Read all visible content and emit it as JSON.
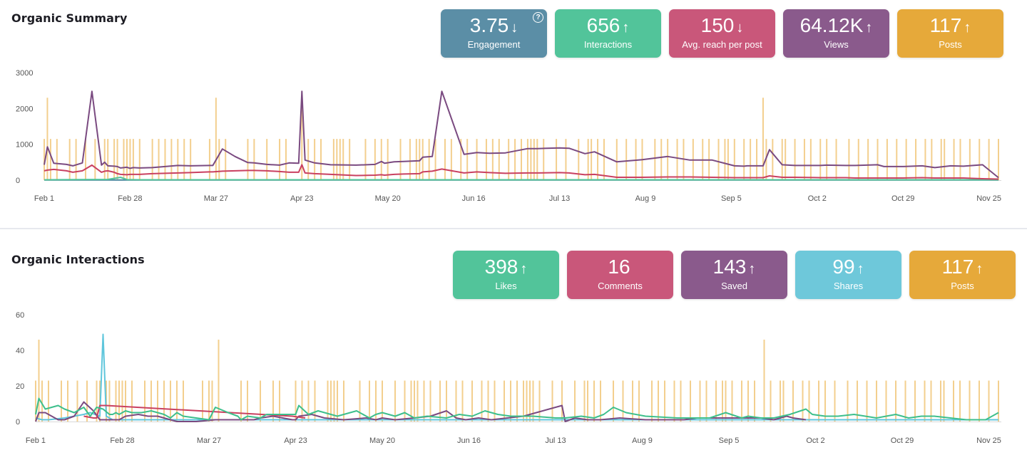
{
  "summary": {
    "title": "Organic Summary",
    "cards": [
      {
        "value": "3.75",
        "trend": "down",
        "label": "Engagement",
        "color": "#5b8ea6",
        "help": true
      },
      {
        "value": "656",
        "trend": "up",
        "label": "Interactions",
        "color": "#52c49a"
      },
      {
        "value": "150",
        "trend": "down",
        "label": "Avg. reach per post",
        "color": "#c9577a"
      },
      {
        "value": "64.12K",
        "trend": "up",
        "label": "Views",
        "color": "#8a5a8c"
      },
      {
        "value": "117",
        "trend": "up",
        "label": "Posts",
        "color": "#e6a93a"
      }
    ]
  },
  "interactions": {
    "title": "Organic Interactions",
    "cards": [
      {
        "value": "398",
        "trend": "up",
        "label": "Likes",
        "color": "#52c49a"
      },
      {
        "value": "16",
        "trend": "none",
        "label": "Comments",
        "color": "#c9577a"
      },
      {
        "value": "143",
        "trend": "up",
        "label": "Saved",
        "color": "#8a5a8c"
      },
      {
        "value": "99",
        "trend": "up",
        "label": "Shares",
        "color": "#6ec8da"
      },
      {
        "value": "117",
        "trend": "up",
        "label": "Posts",
        "color": "#e6a93a"
      }
    ]
  },
  "help_icon": "question-circle-icon",
  "arrow_icons": {
    "up": "↑",
    "down": "↓",
    "none": ""
  },
  "chart_data": [
    {
      "type": "line",
      "title": "Organic Summary",
      "xlabel": "",
      "ylabel": "",
      "ylim": [
        0,
        3000
      ],
      "yticks": [
        0,
        1000,
        2000,
        3000
      ],
      "xtick_labels": [
        "Feb 1",
        "Feb 28",
        "Mar 27",
        "Apr 23",
        "May 20",
        "Jun 16",
        "Jul 13",
        "Aug 9",
        "Sep 5",
        "Oct 2",
        "Oct 29",
        "Nov 25"
      ],
      "x_range_days": [
        0,
        300
      ],
      "grid": false,
      "legend": "none",
      "posts_bars": {
        "color": "#f3cf8e",
        "days": [
          0,
          2,
          4,
          8,
          10,
          13,
          16,
          19,
          20,
          22,
          23,
          25,
          26,
          27,
          28,
          30,
          34,
          36,
          38,
          40,
          42,
          44,
          46,
          52,
          54,
          55,
          57,
          64,
          66,
          70,
          74,
          76,
          81,
          83,
          85,
          87,
          91,
          92,
          93,
          94,
          96,
          101,
          104,
          106,
          108,
          112,
          115,
          117,
          118,
          119,
          121,
          123,
          126,
          128,
          131,
          133,
          136,
          139,
          141,
          143,
          146,
          148,
          150,
          152,
          153,
          154,
          155,
          157,
          161,
          164,
          168,
          171,
          172,
          174,
          176,
          180,
          183,
          186,
          188,
          192,
          194,
          196,
          199,
          201,
          204,
          207,
          209,
          212,
          214,
          215,
          217,
          220,
          222,
          224,
          227,
          229,
          232,
          233,
          236,
          239,
          241,
          244,
          246,
          249,
          253,
          256,
          259,
          262,
          265,
          268,
          271,
          274,
          277,
          279,
          282,
          283,
          286,
          288,
          291,
          294,
          297,
          300
        ],
        "tall_days": [
          1,
          54,
          81,
          226
        ],
        "value_normal": 1150,
        "value_tall": 2300
      },
      "series": [
        {
          "name": "Views",
          "color": "#7a4a80",
          "x": [
            0,
            1,
            3,
            7,
            9,
            12,
            15,
            18,
            19,
            20,
            22,
            23,
            24,
            26,
            27,
            28,
            30,
            34,
            38,
            42,
            46,
            52,
            53,
            56,
            60,
            64,
            66,
            70,
            74,
            77,
            80,
            81,
            82,
            85,
            90,
            98,
            104,
            106,
            107,
            110,
            113,
            118,
            119,
            122,
            125,
            132,
            136,
            140,
            145,
            152,
            155,
            162,
            165,
            170,
            173,
            180,
            188,
            196,
            203,
            210,
            217,
            220,
            221,
            226,
            228,
            232,
            236,
            244,
            246,
            252,
            255,
            262,
            264,
            270,
            276,
            280,
            285,
            289,
            295,
            300
          ],
          "y": [
            430,
            930,
            470,
            440,
            400,
            480,
            2480,
            420,
            500,
            400,
            390,
            380,
            340,
            360,
            330,
            350,
            340,
            350,
            380,
            410,
            400,
            410,
            410,
            870,
            660,
            490,
            480,
            440,
            420,
            480,
            470,
            2480,
            560,
            480,
            430,
            420,
            440,
            520,
            470,
            510,
            520,
            540,
            640,
            660,
            2480,
            720,
            770,
            750,
            760,
            880,
            880,
            900,
            890,
            740,
            790,
            510,
            570,
            660,
            560,
            560,
            400,
            390,
            400,
            400,
            850,
            430,
            410,
            410,
            420,
            410,
            410,
            430,
            380,
            380,
            400,
            350,
            400,
            390,
            430,
            70
          ]
        },
        {
          "name": "Avg. reach per post",
          "color": "#c94060",
          "x": [
            0,
            1,
            3,
            7,
            9,
            12,
            15,
            18,
            19,
            20,
            22,
            23,
            24,
            26,
            27,
            28,
            30,
            34,
            38,
            42,
            46,
            52,
            53,
            56,
            60,
            64,
            66,
            70,
            74,
            77,
            80,
            81,
            82,
            85,
            90,
            98,
            104,
            106,
            107,
            110,
            113,
            118,
            119,
            122,
            125,
            132,
            136,
            140,
            145,
            152,
            155,
            162,
            165,
            170,
            173,
            180,
            188,
            196,
            203,
            210,
            217,
            220,
            221,
            226,
            228,
            232,
            236,
            244,
            246,
            252,
            255,
            262,
            264,
            270,
            276,
            280,
            285,
            289,
            295,
            300
          ],
          "y": [
            260,
            280,
            300,
            260,
            220,
            260,
            420,
            220,
            250,
            260,
            220,
            180,
            160,
            150,
            160,
            160,
            160,
            180,
            190,
            200,
            210,
            230,
            230,
            250,
            260,
            270,
            270,
            260,
            240,
            220,
            220,
            430,
            200,
            180,
            160,
            130,
            140,
            150,
            140,
            160,
            170,
            180,
            230,
            250,
            310,
            200,
            230,
            210,
            190,
            200,
            200,
            210,
            200,
            150,
            160,
            80,
            80,
            90,
            90,
            80,
            70,
            70,
            70,
            70,
            120,
            80,
            80,
            70,
            70,
            70,
            60,
            60,
            60,
            60,
            70,
            60,
            60,
            60,
            40,
            30
          ]
        },
        {
          "name": "Interactions",
          "color": "#52c49a",
          "x": [
            0,
            20,
            22,
            24,
            26,
            30,
            60,
            120,
            180,
            240,
            300
          ],
          "y": [
            10,
            20,
            50,
            80,
            15,
            10,
            10,
            10,
            10,
            10,
            10
          ]
        },
        {
          "name": "Engagement",
          "color": "#4a8aa3",
          "x": [
            0,
            300
          ],
          "y": [
            5,
            5
          ]
        }
      ]
    },
    {
      "type": "line",
      "title": "Organic Interactions",
      "xlabel": "",
      "ylabel": "",
      "ylim": [
        0,
        60
      ],
      "yticks": [
        0,
        20,
        40,
        60
      ],
      "xtick_labels": [
        "Feb 1",
        "Feb 28",
        "Mar 27",
        "Apr 23",
        "May 20",
        "Jun 16",
        "Jul 13",
        "Aug 9",
        "Sep 5",
        "Oct 2",
        "Oct 29",
        "Nov 25"
      ],
      "x_range_days": [
        0,
        300
      ],
      "grid": false,
      "legend": "none",
      "posts_bars": {
        "color": "#f3cf8e",
        "days": [
          0,
          2,
          4,
          8,
          10,
          13,
          16,
          19,
          20,
          22,
          23,
          25,
          26,
          27,
          28,
          30,
          34,
          36,
          38,
          40,
          42,
          44,
          46,
          52,
          54,
          55,
          57,
          64,
          66,
          70,
          74,
          76,
          81,
          83,
          85,
          87,
          91,
          92,
          93,
          94,
          96,
          101,
          104,
          106,
          108,
          112,
          115,
          117,
          118,
          119,
          121,
          123,
          126,
          128,
          131,
          133,
          136,
          139,
          141,
          143,
          146,
          148,
          150,
          152,
          153,
          154,
          155,
          157,
          161,
          164,
          168,
          171,
          172,
          174,
          176,
          180,
          183,
          186,
          188,
          192,
          194,
          196,
          199,
          201,
          204,
          207,
          209,
          212,
          214,
          215,
          217,
          220,
          222,
          224,
          227,
          229,
          232,
          233,
          236,
          239,
          241,
          244,
          246,
          249,
          253,
          256,
          259,
          262,
          265,
          268,
          271,
          274,
          277,
          279,
          282,
          283,
          286,
          288,
          291,
          294,
          297,
          300
        ],
        "tall_days": [
          1,
          57,
          227
        ],
        "value_normal": 23,
        "value_tall": 46
      },
      "series": [
        {
          "name": "Likes",
          "color": "#3dbf8c",
          "x": [
            0,
            1,
            3,
            7,
            9,
            12,
            15,
            17,
            19,
            21,
            23,
            24,
            25,
            26,
            28,
            30,
            33,
            36,
            38,
            40,
            42,
            44,
            46,
            50,
            54,
            56,
            60,
            63,
            64,
            66,
            70,
            72,
            74,
            78,
            81,
            82,
            85,
            88,
            94,
            100,
            104,
            106,
            108,
            112,
            115,
            118,
            122,
            128,
            132,
            136,
            140,
            144,
            148,
            155,
            162,
            165,
            170,
            174,
            177,
            180,
            184,
            190,
            200,
            210,
            215,
            220,
            222,
            226,
            230,
            235,
            240,
            242,
            246,
            250,
            255,
            262,
            268,
            272,
            276,
            280,
            285,
            290,
            296,
            300
          ],
          "y": [
            4,
            13,
            7,
            9,
            7,
            5,
            8,
            3,
            8,
            7,
            4,
            4,
            5,
            4,
            6,
            5,
            5,
            6,
            5,
            4,
            2,
            5,
            3,
            2,
            1,
            8,
            5,
            3,
            1,
            3,
            2,
            4,
            4,
            4,
            4,
            9,
            4,
            6,
            3,
            6,
            2,
            4,
            5,
            3,
            5,
            2,
            3,
            2,
            4,
            3,
            6,
            4,
            3,
            3,
            2,
            2,
            3,
            2,
            4,
            8,
            5,
            3,
            2,
            2,
            5,
            2,
            3,
            2,
            2,
            4,
            7,
            4,
            3,
            3,
            4,
            2,
            4,
            2,
            3,
            3,
            2,
            1,
            1,
            5
          ]
        },
        {
          "name": "Comments",
          "color": "#c94060",
          "x": [
            15,
            18,
            19,
            20,
            22,
            80,
            84
          ],
          "y": [
            3,
            2,
            2,
            9,
            9,
            3,
            2
          ]
        },
        {
          "name": "Saved",
          "color": "#7a4a80",
          "x": [
            0,
            1,
            3,
            7,
            9,
            12,
            15,
            18,
            20,
            22,
            26,
            28,
            32,
            35,
            38,
            44,
            50,
            56,
            62,
            68,
            70,
            74,
            77,
            80,
            81,
            82,
            86,
            90,
            96,
            103,
            106,
            108,
            112,
            118,
            123,
            128,
            131,
            134,
            138,
            142,
            147,
            152,
            164,
            165,
            168,
            172,
            176,
            182,
            190,
            196,
            202,
            206,
            212,
            218,
            226,
            230,
            234,
            236,
            240
          ],
          "y": [
            0,
            5,
            5,
            1,
            1,
            3,
            11,
            6,
            1,
            1,
            1,
            3,
            4,
            3,
            3,
            0,
            0,
            1,
            1,
            1,
            2,
            3,
            2,
            1,
            1,
            3,
            4,
            2,
            1,
            2,
            1,
            2,
            1,
            2,
            3,
            6,
            2,
            1,
            2,
            1,
            2,
            3,
            9,
            0,
            2,
            1,
            1,
            2,
            1,
            1,
            1,
            2,
            2,
            2,
            2,
            1,
            3,
            2,
            1
          ]
        },
        {
          "name": "Shares",
          "color": "#5fc6dc",
          "x": [
            0,
            2,
            4,
            9,
            12,
            15,
            17,
            20,
            21,
            22,
            24,
            30,
            40,
            60,
            80,
            120,
            180,
            200,
            220,
            300
          ],
          "y": [
            2,
            1,
            1,
            2,
            3,
            4,
            5,
            3,
            49,
            3,
            1,
            1,
            1,
            1,
            1,
            1,
            1,
            1,
            1,
            1
          ]
        }
      ]
    }
  ]
}
